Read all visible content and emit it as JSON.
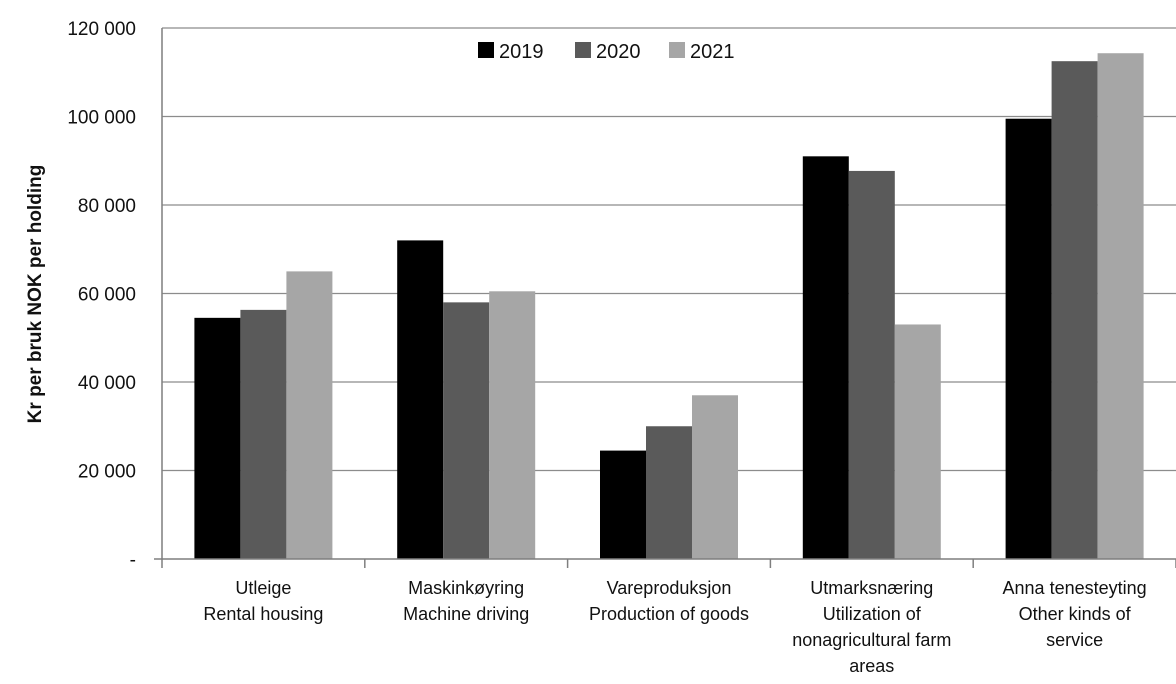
{
  "chart_data": {
    "type": "bar",
    "title": "",
    "xlabel": "",
    "ylabel": "Kr per bruk   NOK per holding",
    "ylim": [
      0,
      120000
    ],
    "yticks": [
      {
        "value": 0,
        "label": "-"
      },
      {
        "value": 20000,
        "label": "20 000"
      },
      {
        "value": 40000,
        "label": "40 000"
      },
      {
        "value": 60000,
        "label": "60 000"
      },
      {
        "value": 80000,
        "label": "80 000"
      },
      {
        "value": 100000,
        "label": "100 000"
      },
      {
        "value": 120000,
        "label": "120 000"
      }
    ],
    "grid": true,
    "legend_position": "top-center",
    "categories": [
      [
        "Utleige",
        "Rental  housing"
      ],
      [
        "Maskinkøyring",
        "Machine driving"
      ],
      [
        "Vareproduksjon",
        "Production of goods"
      ],
      [
        "Utmarksnæring",
        "Utilization of",
        "nonagricultural farm",
        "areas"
      ],
      [
        "Anna tenesteyting",
        "Other kinds of",
        "service"
      ]
    ],
    "series": [
      {
        "name": "2019",
        "color": "#000000",
        "values": [
          54500,
          72000,
          24500,
          91000,
          99500
        ]
      },
      {
        "name": "2020",
        "color": "#5a5a5a",
        "values": [
          56300,
          58000,
          30000,
          87700,
          112500
        ]
      },
      {
        "name": "2021",
        "color": "#a6a6a6",
        "values": [
          65000,
          60500,
          37000,
          53000,
          114300
        ]
      }
    ]
  }
}
